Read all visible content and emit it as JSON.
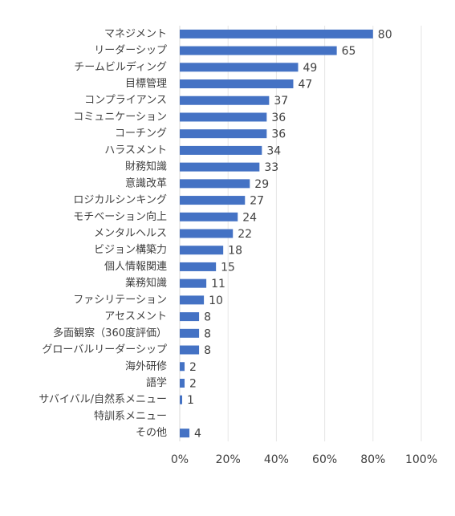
{
  "chart_data": {
    "type": "bar",
    "orientation": "horizontal",
    "categories": [
      "マネジメント",
      "リーダーシップ",
      "チームビルディング",
      "目標管理",
      "コンプライアンス",
      "コミュニケーション",
      "コーチング",
      "ハラスメント",
      "財務知識",
      "意識改革",
      "ロジカルシンキング",
      "モチベーション向上",
      "メンタルヘルス",
      "ビジョン構築力",
      "個人情報関連",
      "業務知識",
      "ファシリテーション",
      "アセスメント",
      "多面観察（360度評価）",
      "グローバルリーダーシップ",
      "海外研修",
      "語学",
      "サバイバル/自然系メニュー",
      "特訓系メニュー",
      "その他"
    ],
    "values": [
      80,
      65,
      49,
      47,
      37,
      36,
      36,
      34,
      33,
      29,
      27,
      24,
      22,
      18,
      15,
      11,
      10,
      8,
      8,
      8,
      2,
      2,
      1,
      null,
      4
    ],
    "color": "#4472c4",
    "xlim": [
      0,
      100
    ],
    "xticks": [
      {
        "value": 0,
        "label": "0%"
      },
      {
        "value": 20,
        "label": "20%"
      },
      {
        "value": 40,
        "label": "40%"
      },
      {
        "value": 60,
        "label": "60%"
      },
      {
        "value": 80,
        "label": "80%"
      },
      {
        "value": 100,
        "label": "100%"
      }
    ],
    "grid": true
  }
}
